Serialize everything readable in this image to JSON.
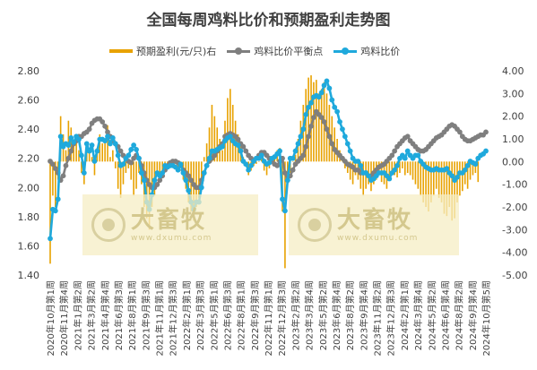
{
  "chart_data": {
    "type": "bar+line",
    "title": "全国每周鸡料比价和预期盈利走势图",
    "legend": [
      {
        "name": "预期盈利(元/只)右",
        "color": "#E8A200",
        "kind": "bar"
      },
      {
        "name": "鸡料比价平衡点",
        "color": "#7F7F7F",
        "kind": "line"
      },
      {
        "name": "鸡料比价",
        "color": "#1FA9DC",
        "kind": "line"
      }
    ],
    "left_axis": {
      "min": 1.4,
      "max": 2.8,
      "step": 0.2,
      "tick_labels": [
        "1.40",
        "1.60",
        "1.80",
        "2.00",
        "2.20",
        "2.40",
        "2.60",
        "2.80"
      ]
    },
    "right_axis": {
      "min": -5,
      "max": 4,
      "step": 1,
      "tick_labels": [
        "-5.00",
        "-4.00",
        "-3.00",
        "-2.00",
        "-1.00",
        "0.00",
        "1.00",
        "2.00",
        "3.00",
        "4.00"
      ]
    },
    "x_labels": [
      "2020年10月第1周",
      "2020年11月第4周",
      "2021年1月第2周",
      "2021年3月第2周",
      "2021年4月第4周",
      "2021年6月第3周",
      "2021年8月第1周",
      "2021年9月第3周",
      "2021年11月第1周",
      "2021年12月第3周",
      "2022年2月第1周",
      "2022年3月第3周",
      "2022年5月第1周",
      "2022年6月第3周",
      "2022年8月第1周",
      "2022年9月第3周",
      "2022年11月第1周",
      "2022年12月第3周",
      "2023年2月第2周",
      "2023年3月第4周",
      "2023年5月第2周",
      "2023年6月第4周",
      "2023年8月第2周",
      "2023年9月第4周",
      "2023年11月第2周",
      "2023年12月第3周",
      "2024年2月第1周",
      "2024年3月第4周",
      "2024年5月第2周",
      "2024年6月第4周",
      "2024年8月第2周",
      "2024年9月第4周",
      "2024年10月第5周"
    ],
    "series": [
      {
        "name": "鸡料比价",
        "axis": "left",
        "values": [
          1.65,
          1.85,
          1.84,
          1.92,
          2.35,
          2.28,
          2.3,
          2.29,
          2.34,
          2.31,
          2.35,
          2.33,
          2.22,
          2.1,
          2.3,
          2.25,
          2.29,
          2.18,
          2.25,
          2.33,
          2.33,
          2.32,
          2.35,
          2.3,
          2.34,
          2.3,
          2.22,
          2.15,
          2.16,
          2.2,
          2.22,
          2.26,
          2.29,
          2.26,
          2.2,
          2.1,
          2.05,
          1.9,
          1.85,
          1.95,
          2.05,
          2.1,
          2.08,
          2.1,
          2.15,
          2.14,
          2.15,
          2.15,
          2.14,
          2.12,
          2.16,
          2.1,
          2.05,
          1.98,
          1.9,
          1.85,
          1.9,
          1.9,
          2.0,
          2.1,
          2.15,
          2.2,
          2.25,
          2.25,
          2.26,
          2.27,
          2.28,
          2.32,
          2.34,
          2.35,
          2.32,
          2.3,
          2.29,
          2.25,
          2.18,
          2.16,
          2.12,
          2.15,
          2.18,
          2.2,
          2.2,
          2.22,
          2.18,
          2.16,
          2.17,
          2.2,
          2.21,
          2.23,
          2.25,
          1.92,
          1.84,
          2.05,
          2.2,
          2.2,
          2.25,
          2.3,
          2.35,
          2.4,
          2.5,
          2.55,
          2.58,
          2.62,
          2.63,
          2.62,
          2.65,
          2.7,
          2.73,
          2.68,
          2.6,
          2.55,
          2.52,
          2.45,
          2.4,
          2.35,
          2.3,
          2.25,
          2.2,
          2.18,
          2.18,
          2.15,
          2.1,
          2.1,
          2.08,
          2.05,
          2.06,
          2.08,
          2.1,
          2.1,
          2.1,
          2.08,
          2.06,
          2.1,
          2.12,
          2.15,
          2.2,
          2.22,
          2.2,
          2.25,
          2.22,
          2.2,
          2.22,
          2.22,
          2.18,
          2.16,
          2.14,
          2.13,
          2.12,
          2.12,
          2.13,
          2.12,
          2.12,
          2.12,
          2.13,
          2.1,
          2.08,
          2.05,
          2.07,
          2.1,
          2.1,
          2.12,
          2.15,
          2.18,
          2.17,
          2.16,
          2.2,
          2.22,
          2.23,
          2.25
        ]
      },
      {
        "name": "鸡料比价平衡点",
        "axis": "left",
        "values": [
          2.18,
          2.16,
          2.13,
          2.1,
          2.05,
          2.08,
          2.15,
          2.2,
          2.25,
          2.3,
          2.32,
          2.35,
          2.35,
          2.37,
          2.38,
          2.4,
          2.44,
          2.46,
          2.47,
          2.47,
          2.45,
          2.42,
          2.38,
          2.35,
          2.32,
          2.3,
          2.28,
          2.25,
          2.22,
          2.2,
          2.18,
          2.17,
          2.2,
          2.22,
          2.2,
          2.15,
          2.1,
          2.05,
          2.02,
          2.0,
          2.0,
          2.02,
          2.05,
          2.08,
          2.12,
          2.15,
          2.17,
          2.18,
          2.18,
          2.17,
          2.15,
          2.12,
          2.1,
          2.08,
          2.05,
          2.02,
          2.0,
          2.0,
          2.05,
          2.1,
          2.15,
          2.18,
          2.2,
          2.22,
          2.25,
          2.28,
          2.3,
          2.35,
          2.36,
          2.37,
          2.36,
          2.35,
          2.33,
          2.3,
          2.28,
          2.25,
          2.22,
          2.2,
          2.18,
          2.2,
          2.22,
          2.24,
          2.24,
          2.22,
          2.2,
          2.18,
          2.16,
          2.15,
          2.18,
          2.2,
          2.1,
          2.05,
          2.08,
          2.12,
          2.16,
          2.18,
          2.2,
          2.22,
          2.28,
          2.35,
          2.42,
          2.48,
          2.52,
          2.5,
          2.48,
          2.45,
          2.4,
          2.35,
          2.3,
          2.26,
          2.24,
          2.22,
          2.2,
          2.18,
          2.16,
          2.15,
          2.14,
          2.12,
          2.12,
          2.1,
          2.1,
          2.1,
          2.08,
          2.08,
          2.1,
          2.12,
          2.14,
          2.15,
          2.16,
          2.18,
          2.2,
          2.22,
          2.25,
          2.28,
          2.3,
          2.32,
          2.34,
          2.35,
          2.32,
          2.3,
          2.28,
          2.26,
          2.25,
          2.25,
          2.26,
          2.28,
          2.3,
          2.32,
          2.34,
          2.35,
          2.36,
          2.38,
          2.4,
          2.42,
          2.43,
          2.42,
          2.4,
          2.38,
          2.35,
          2.33,
          2.32,
          2.32,
          2.33,
          2.34,
          2.35,
          2.36,
          2.36,
          2.38
        ]
      },
      {
        "name": "预期盈利(元/只)右",
        "axis": "right",
        "values": [
          -4.5,
          -1.5,
          -2.0,
          -0.8,
          2.0,
          1.2,
          0.5,
          1.8,
          1.5,
          0.8,
          1.2,
          0.5,
          -0.5,
          -1.0,
          0.8,
          0.5,
          0.2,
          -0.6,
          0.6,
          1.2,
          0.8,
          1.0,
          1.6,
          0.2,
          0.5,
          -0.3,
          -1.2,
          -1.6,
          -1.0,
          -0.5,
          -0.3,
          -0.8,
          -1.5,
          -1.2,
          -0.5,
          -1.0,
          -2.0,
          -2.5,
          -3.0,
          -2.0,
          -1.5,
          -0.5,
          -0.8,
          -0.6,
          -0.4,
          -0.3,
          -0.2,
          0.0,
          -0.1,
          -0.4,
          -0.2,
          -0.8,
          -1.2,
          -1.8,
          -2.2,
          -2.6,
          -2.0,
          -1.6,
          -1.0,
          0.2,
          0.8,
          1.5,
          2.5,
          2.0,
          1.5,
          1.0,
          0.5,
          1.8,
          2.8,
          3.2,
          2.5,
          1.8,
          1.2,
          0.8,
          0.2,
          -0.2,
          -0.6,
          -0.4,
          -0.2,
          -0.1,
          0.0,
          0.2,
          -0.4,
          -0.6,
          -0.3,
          -0.1,
          0.2,
          0.5,
          0.6,
          -2.2,
          -4.7,
          -1.0,
          -0.5,
          0.0,
          0.3,
          1.0,
          1.8,
          2.5,
          3.2,
          3.7,
          3.8,
          3.5,
          3.6,
          3.0,
          3.2,
          3.5,
          3.0,
          2.5,
          2.0,
          1.5,
          1.0,
          0.5,
          0.2,
          -0.3,
          -0.5,
          -0.8,
          -1.0,
          -0.6,
          -0.8,
          -1.2,
          -1.5,
          -1.2,
          -1.0,
          -1.3,
          -1.0,
          -0.8,
          -0.6,
          -0.9,
          -1.0,
          -1.2,
          -0.8,
          -0.5,
          -0.6,
          -0.7,
          -0.5,
          -0.3,
          -0.6,
          -0.5,
          -0.6,
          -0.8,
          -1.0,
          -1.2,
          -1.5,
          -1.8,
          -2.0,
          -2.2,
          -1.8,
          -1.5,
          -1.2,
          -1.6,
          -1.8,
          -2.3,
          -2.4,
          -2.0,
          -2.6,
          -2.5,
          -1.8,
          -1.5,
          -1.3,
          -1.0,
          -1.2,
          -0.8,
          -0.6,
          -0.5,
          -0.9
        ]
      }
    ],
    "watermarks": [
      {
        "text": "大畜牧",
        "url": "www.dxumu.com"
      },
      {
        "text": "大畜牧",
        "url": "www.dxumu.com"
      }
    ],
    "grid": "none",
    "legend_position": "top"
  }
}
